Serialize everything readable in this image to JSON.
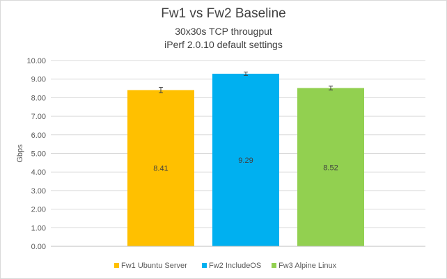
{
  "chart_data": {
    "type": "bar",
    "title": "Fw1 vs Fw2 Baseline",
    "subtitles": [
      "30x30s TCP througput",
      "iPerf 2.0.10 default settings"
    ],
    "ylabel": "Gbps",
    "xlabel": "",
    "ylim": [
      0,
      10
    ],
    "ytick_step": 1,
    "ytick_labels": [
      "0.00",
      "1.00",
      "2.00",
      "3.00",
      "4.00",
      "5.00",
      "6.00",
      "7.00",
      "8.00",
      "9.00",
      "10.00"
    ],
    "grid": true,
    "legend_position": "bottom",
    "series": [
      {
        "name": "Fw1 Ubuntu Server",
        "value": 8.41,
        "label": "8.41",
        "error": 0.15,
        "color": "#ffc000"
      },
      {
        "name": "Fw2 IncludeOS",
        "value": 9.29,
        "label": "9.29",
        "error": 0.09,
        "color": "#00b0f0"
      },
      {
        "name": "Fw3 Alpine Linux",
        "value": 8.52,
        "label": "8.52",
        "error": 0.1,
        "color": "#92d050"
      }
    ]
  }
}
